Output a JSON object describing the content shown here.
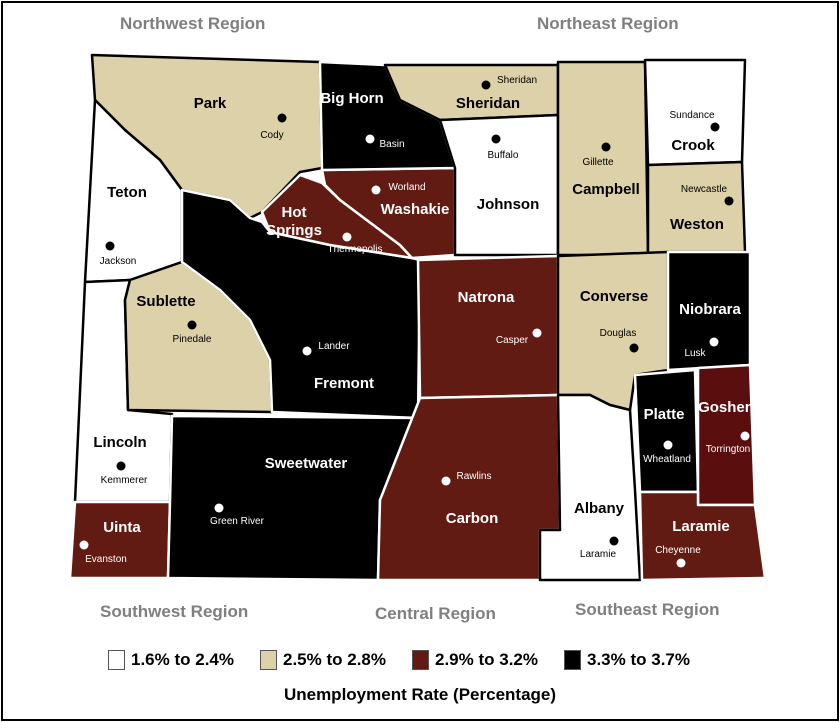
{
  "colors": {
    "low": "#ffffff",
    "midlow": "#ddd1a9",
    "midhigh": "#621b12",
    "high": "#000000",
    "goshen": "#5a0e0e"
  },
  "regions": [
    "Northwest Region",
    "Northeast Region",
    "Southwest Region",
    "Central Region",
    "Southeast Region"
  ],
  "counties": [
    {
      "name": "Park",
      "city": "Cody",
      "class": "midlow"
    },
    {
      "name": "Teton",
      "city": "Jackson",
      "class": "low"
    },
    {
      "name": "Lincoln",
      "city": "Kemmerer",
      "class": "low"
    },
    {
      "name": "Sublette",
      "city": "Pinedale",
      "class": "midlow"
    },
    {
      "name": "Uinta",
      "city": "Evanston",
      "class": "midhigh"
    },
    {
      "name": "Sweetwater",
      "city": "Green River",
      "class": "high"
    },
    {
      "name": "Fremont",
      "city": "Lander",
      "class": "high"
    },
    {
      "name": "Hot Springs",
      "city": "Thermopolis",
      "class": "midhigh"
    },
    {
      "name": "Washakie",
      "city": "Worland",
      "class": "midhigh"
    },
    {
      "name": "Big Horn",
      "city": "Basin",
      "class": "high"
    },
    {
      "name": "Sheridan",
      "city": "Sheridan",
      "class": "midlow"
    },
    {
      "name": "Johnson",
      "city": "Buffalo",
      "class": "low"
    },
    {
      "name": "Campbell",
      "city": "Gillette",
      "class": "midlow"
    },
    {
      "name": "Crook",
      "city": "Sundance",
      "class": "low"
    },
    {
      "name": "Weston",
      "city": "Newcastle",
      "class": "midlow"
    },
    {
      "name": "Natrona",
      "city": "Casper",
      "class": "midhigh"
    },
    {
      "name": "Converse",
      "city": "Douglas",
      "class": "midlow"
    },
    {
      "name": "Niobrara",
      "city": "Lusk",
      "class": "high"
    },
    {
      "name": "Carbon",
      "city": "Rawlins",
      "class": "midhigh"
    },
    {
      "name": "Albany",
      "city": "Laramie",
      "class": "low"
    },
    {
      "name": "Platte",
      "city": "Wheatland",
      "class": "high"
    },
    {
      "name": "Goshen",
      "city": "Torrington",
      "class": "goshen"
    },
    {
      "name": "Laramie",
      "city": "Cheyenne",
      "class": "midhigh"
    }
  ],
  "legend": {
    "title": "Unemployment Rate (Percentage)",
    "items": [
      {
        "label": "1.6% to 2.4%",
        "color": "#ffffff"
      },
      {
        "label": "2.5% to 2.8%",
        "color": "#ddd1a9"
      },
      {
        "label": "2.9% to 3.2%",
        "color": "#621b12"
      },
      {
        "label": "3.3% to 3.7%",
        "color": "#000000"
      }
    ]
  }
}
